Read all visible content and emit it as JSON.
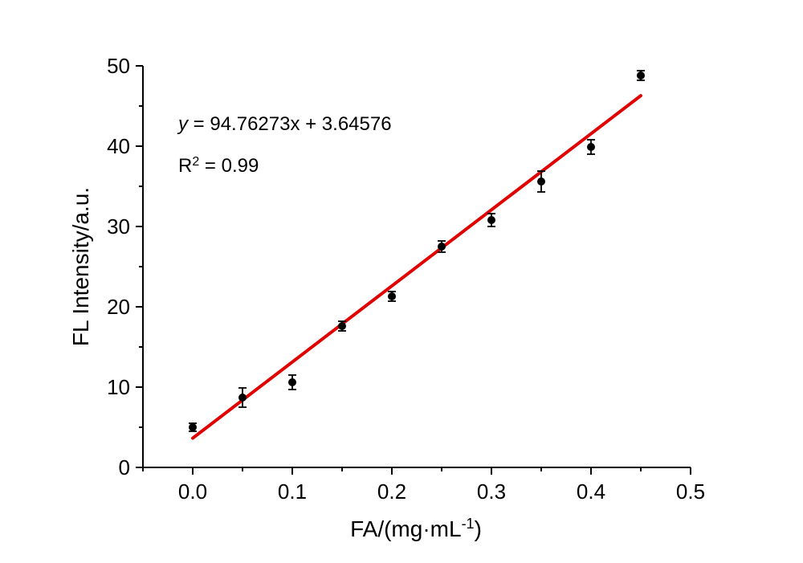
{
  "chart_data": {
    "type": "scatter",
    "xlabel": "FA/(mg·mL",
    "xlabel_sup": "-1",
    "xlabel_suffix": ")",
    "ylabel": "FL Intensity/a.u.",
    "xlim": [
      -0.05,
      0.5
    ],
    "ylim": [
      0,
      50
    ],
    "xticks": [
      "0.0",
      "0.1",
      "0.2",
      "0.3",
      "0.4",
      "0.5"
    ],
    "yticks": [
      "0",
      "10",
      "20",
      "30",
      "40",
      "50"
    ],
    "grid": false,
    "series": [
      {
        "points": [
          {
            "x": 0.0,
            "y": 5.0,
            "err": 0.5
          },
          {
            "x": 0.05,
            "y": 8.7,
            "err": 1.2
          },
          {
            "x": 0.1,
            "y": 10.6,
            "err": 0.9
          },
          {
            "x": 0.15,
            "y": 17.6,
            "err": 0.6
          },
          {
            "x": 0.2,
            "y": 21.3,
            "err": 0.6
          },
          {
            "x": 0.25,
            "y": 27.5,
            "err": 0.7
          },
          {
            "x": 0.3,
            "y": 30.8,
            "err": 0.8
          },
          {
            "x": 0.35,
            "y": 35.6,
            "err": 1.3
          },
          {
            "x": 0.4,
            "y": 39.9,
            "err": 0.9
          },
          {
            "x": 0.45,
            "y": 48.8,
            "err": 0.6
          }
        ],
        "color": "#000000"
      }
    ],
    "fit": {
      "slope": 94.76273,
      "intercept": 3.64576,
      "x_range": [
        0.0,
        0.45
      ],
      "color": "#e00000"
    },
    "annotation": {
      "equation_var": "y",
      "equation_rest": " = 94.76273x + 3.64576",
      "r2_label": "R",
      "r2_sup": "2",
      "r2_value": " = 0.99"
    }
  }
}
